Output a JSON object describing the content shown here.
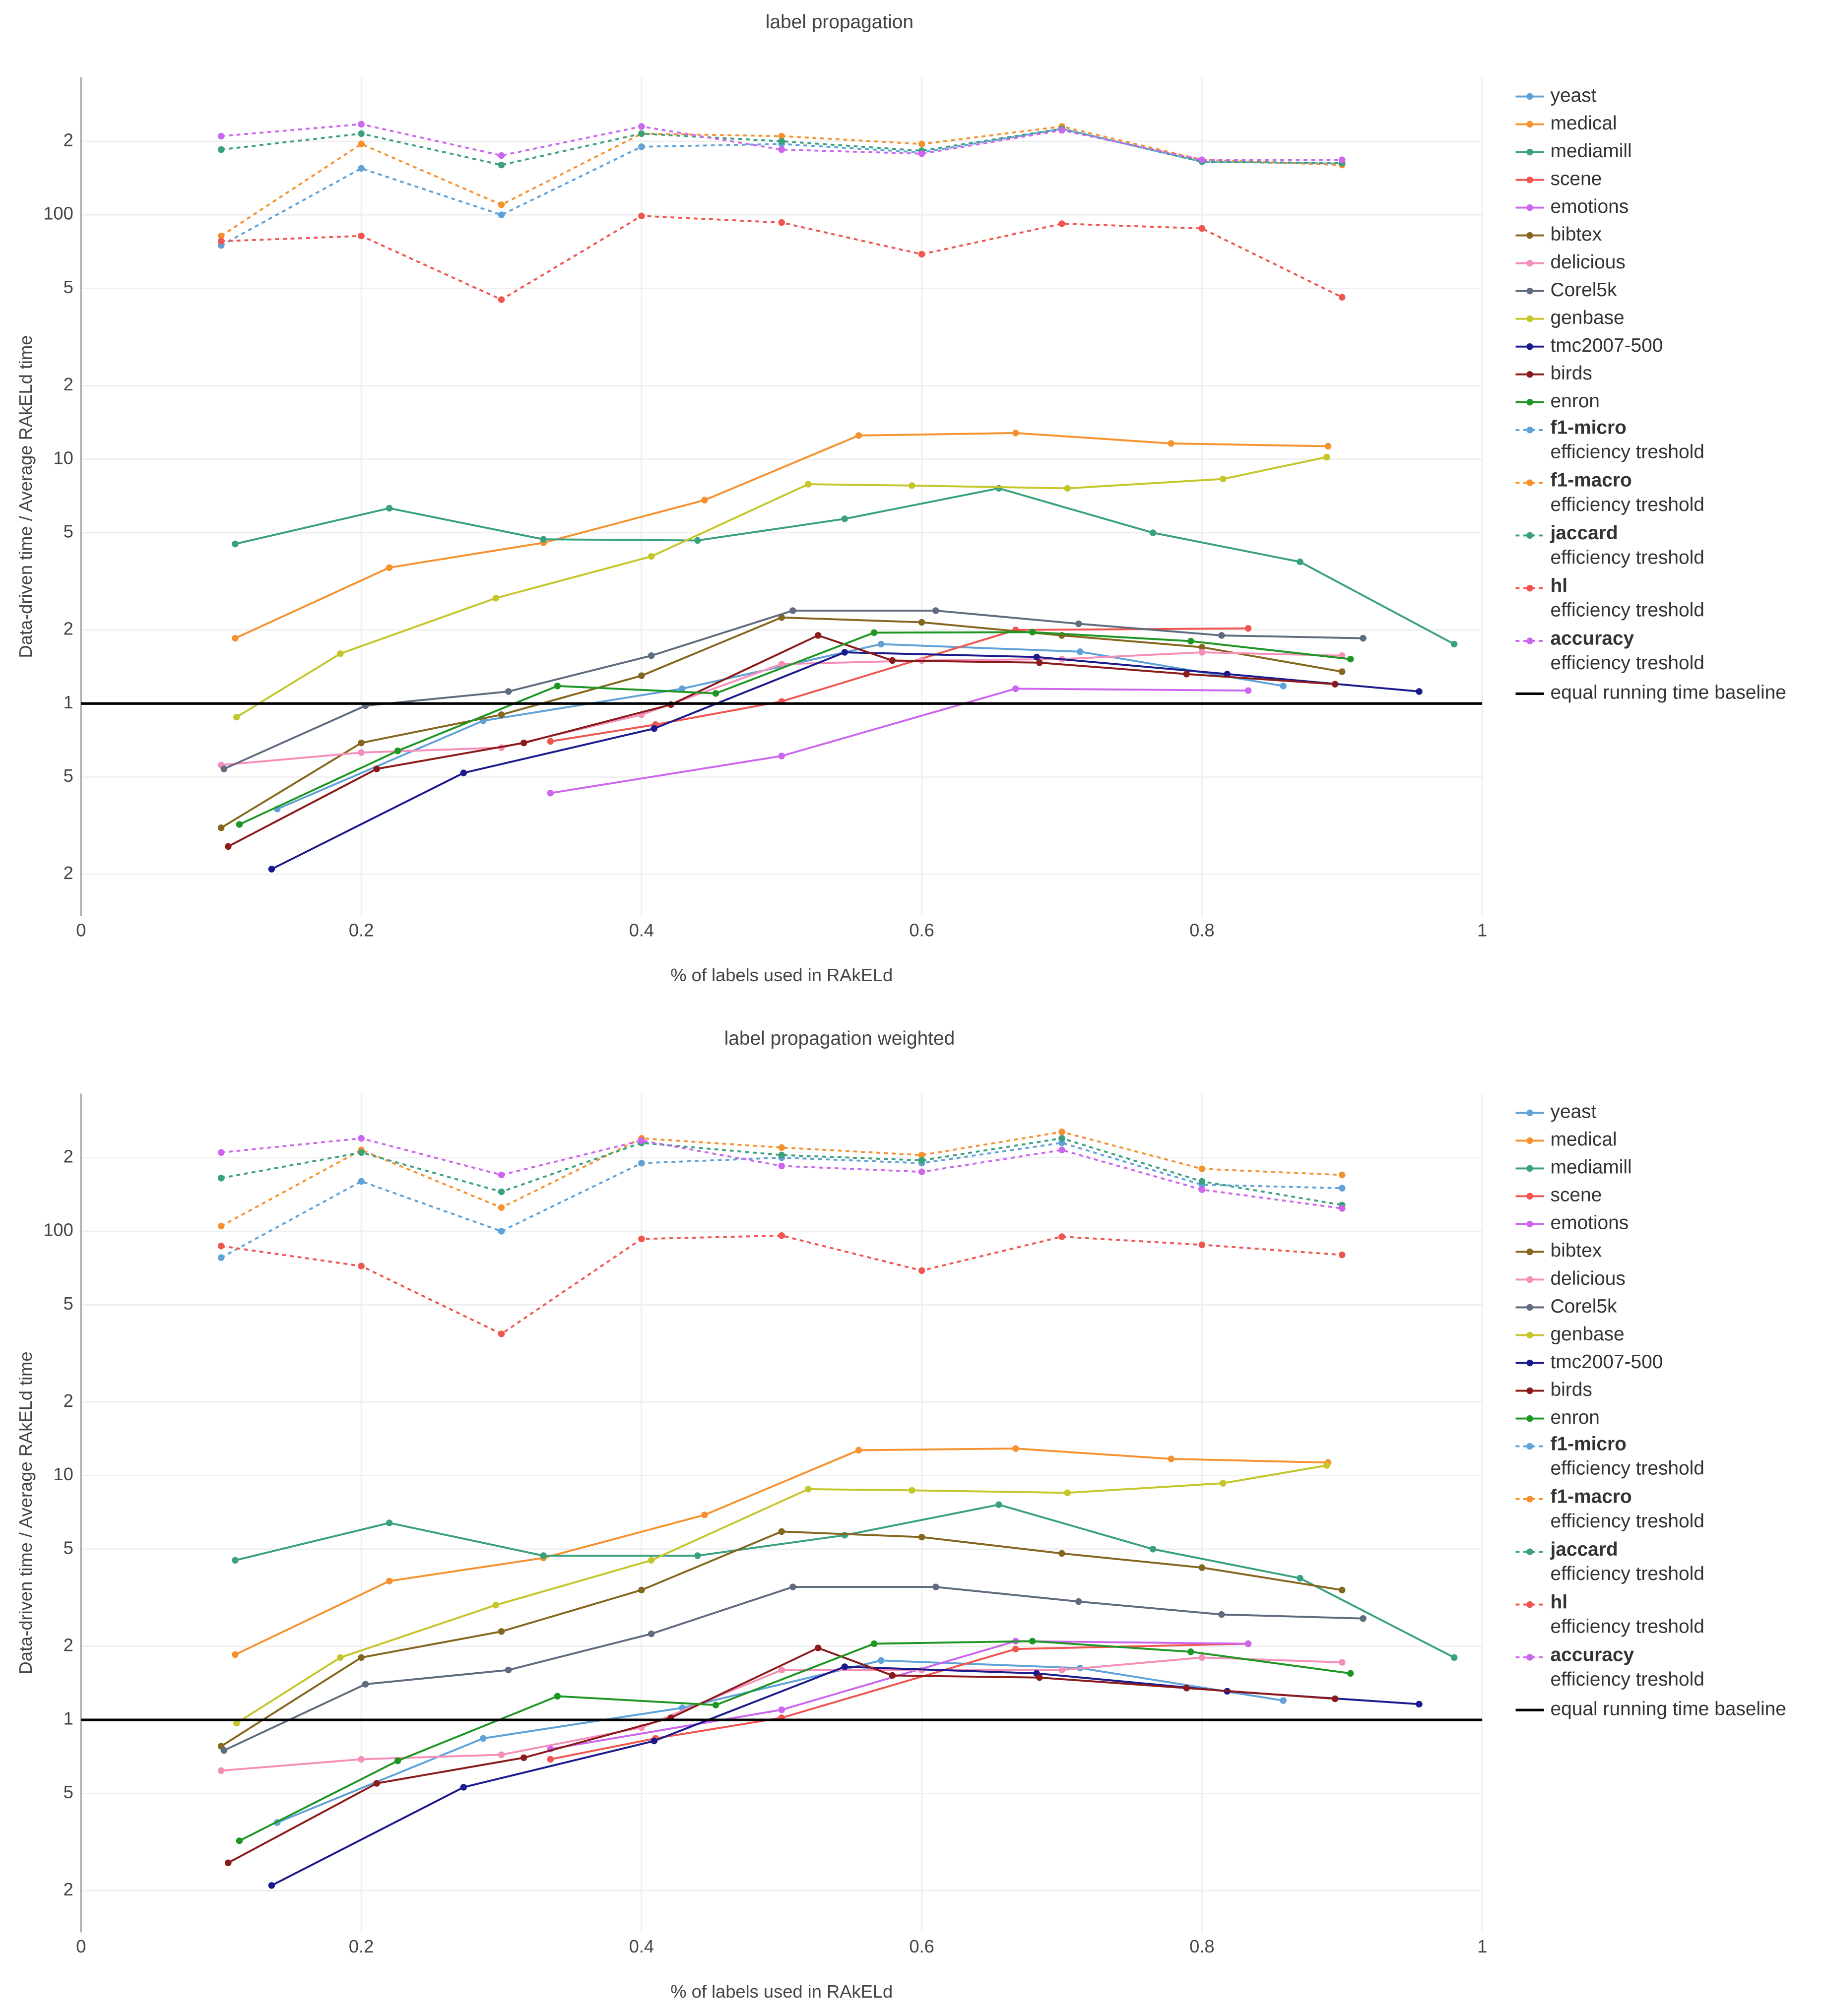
{
  "chart_data": [
    {
      "type": "line",
      "title": "label propagation",
      "xlabel": "% of labels used in RAkELd",
      "ylabel": "Data-driven time / Average RAkELd time",
      "xlim": [
        0,
        1
      ],
      "xticks": [
        0,
        0.2,
        0.4,
        0.6,
        0.8,
        1
      ],
      "ylim": [
        0.135,
        366
      ],
      "log_y": true,
      "grid": true,
      "yticks": [
        {
          "value": 0.2,
          "label": "2"
        },
        {
          "value": 0.5,
          "label": "5"
        },
        1,
        {
          "value": 2,
          "label": "2"
        },
        {
          "value": 5,
          "label": "5"
        },
        10,
        {
          "value": 20,
          "label": "2"
        },
        {
          "value": 50,
          "label": "5"
        },
        100,
        {
          "value": 200,
          "label": "2"
        }
      ],
      "series": [
        {
          "name": "yeast",
          "color": "#5fa2d8",
          "dash": false,
          "x": [
            0.14,
            0.287,
            0.429,
            0.571,
            0.713,
            0.858
          ],
          "values": [
            0.37,
            0.85,
            1.15,
            1.75,
            1.63,
            1.18
          ]
        },
        {
          "name": "medical",
          "color": "#f5922f",
          "dash": false,
          "x": [
            0.11,
            0.22,
            0.33,
            0.445,
            0.555,
            0.667,
            0.778,
            0.89
          ],
          "values": [
            1.85,
            3.6,
            4.55,
            6.8,
            12.5,
            12.8,
            11.6,
            11.3
          ]
        },
        {
          "name": "mediamill",
          "color": "#3aa17e",
          "dash": false,
          "x": [
            0.11,
            0.22,
            0.33,
            0.44,
            0.545,
            0.655,
            0.765,
            0.87,
            0.98
          ],
          "values": [
            4.5,
            6.3,
            4.7,
            4.65,
            5.7,
            7.6,
            5.0,
            3.8,
            1.75
          ]
        },
        {
          "name": "scene",
          "color": "#f0554f",
          "dash": false,
          "x": [
            0.335,
            0.41,
            0.5,
            0.667,
            0.833
          ],
          "values": [
            0.7,
            0.82,
            1.02,
            2.0,
            2.03
          ]
        },
        {
          "name": "emotions",
          "color": "#cc66ee",
          "dash": false,
          "x": [
            0.335,
            0.5,
            0.667,
            0.833
          ],
          "values": [
            0.43,
            0.61,
            1.15,
            1.13
          ]
        },
        {
          "name": "bibtex",
          "color": "#85661e",
          "dash": false,
          "x": [
            0.1,
            0.2,
            0.3,
            0.4,
            0.5,
            0.6,
            0.7,
            0.8,
            0.9
          ],
          "values": [
            0.31,
            0.69,
            0.9,
            1.3,
            2.25,
            2.15,
            1.9,
            1.7,
            1.35
          ]
        },
        {
          "name": "delicious",
          "color": "#f58fba",
          "dash": false,
          "x": [
            0.1,
            0.2,
            0.3,
            0.4,
            0.5,
            0.6,
            0.7,
            0.8,
            0.9
          ],
          "values": [
            0.56,
            0.63,
            0.66,
            0.9,
            1.45,
            1.5,
            1.52,
            1.62,
            1.57
          ]
        },
        {
          "name": "Corel5k",
          "color": "#5f6b7e",
          "dash": false,
          "x": [
            0.102,
            0.203,
            0.305,
            0.407,
            0.508,
            0.61,
            0.712,
            0.814,
            0.915
          ],
          "values": [
            0.54,
            0.98,
            1.12,
            1.57,
            2.4,
            2.4,
            2.12,
            1.9,
            1.85
          ]
        },
        {
          "name": "genbase",
          "color": "#c4c62a",
          "dash": false,
          "x": [
            0.111,
            0.185,
            0.296,
            0.407,
            0.519,
            0.593,
            0.704,
            0.815,
            0.889
          ],
          "values": [
            0.88,
            1.6,
            2.7,
            4.0,
            7.9,
            7.8,
            7.6,
            8.3,
            10.2
          ]
        },
        {
          "name": "tmc2007-500",
          "color": "#1a1a8c",
          "dash": false,
          "x": [
            0.136,
            0.273,
            0.409,
            0.545,
            0.682,
            0.818,
            0.955
          ],
          "values": [
            0.21,
            0.52,
            0.79,
            1.62,
            1.55,
            1.32,
            1.12
          ]
        },
        {
          "name": "birds",
          "color": "#8b1a1a",
          "dash": false,
          "x": [
            0.105,
            0.211,
            0.316,
            0.421,
            0.526,
            0.579,
            0.684,
            0.789,
            0.895
          ],
          "values": [
            0.26,
            0.54,
            0.69,
            0.99,
            1.9,
            1.5,
            1.47,
            1.32,
            1.2
          ]
        },
        {
          "name": "enron",
          "color": "#1e9624",
          "dash": false,
          "x": [
            0.113,
            0.226,
            0.34,
            0.453,
            0.566,
            0.679,
            0.792,
            0.906
          ],
          "values": [
            0.32,
            0.64,
            1.18,
            1.1,
            1.95,
            1.96,
            1.8,
            1.52
          ]
        },
        {
          "name": "f1-micro",
          "name_line2": "efficiency treshold",
          "color": "#5fa2d8",
          "dash": true,
          "x": [
            0.1,
            0.2,
            0.3,
            0.4,
            0.5,
            0.6,
            0.7,
            0.8,
            0.9
          ],
          "values": [
            75,
            155,
            100,
            190,
            195,
            180,
            225,
            165,
            162
          ]
        },
        {
          "name": "f1-macro",
          "name_line2": "efficiency treshold",
          "color": "#f5922f",
          "dash": true,
          "x": [
            0.1,
            0.2,
            0.3,
            0.4,
            0.5,
            0.6,
            0.7,
            0.8,
            0.9
          ],
          "values": [
            82,
            195,
            110,
            215,
            210,
            195,
            230,
            168,
            160
          ]
        },
        {
          "name": "jaccard",
          "name_line2": "efficiency treshold",
          "color": "#3aa17e",
          "dash": true,
          "x": [
            0.1,
            0.2,
            0.3,
            0.4,
            0.5,
            0.6,
            0.7,
            0.8,
            0.9
          ],
          "values": [
            185,
            215,
            160,
            215,
            200,
            183,
            225,
            165,
            163
          ]
        },
        {
          "name": "hl",
          "name_line2": "efficiency treshold",
          "color": "#f0554f",
          "dash": true,
          "x": [
            0.1,
            0.2,
            0.3,
            0.4,
            0.5,
            0.6,
            0.7,
            0.8,
            0.9
          ],
          "values": [
            78,
            82,
            45,
            99,
            93,
            69,
            92,
            88,
            46
          ]
        },
        {
          "name": "accuracy",
          "name_line2": "efficiency treshold",
          "color": "#cc66ee",
          "dash": true,
          "x": [
            0.1,
            0.2,
            0.3,
            0.4,
            0.5,
            0.6,
            0.7,
            0.8,
            0.9
          ],
          "values": [
            210,
            235,
            175,
            230,
            185,
            178,
            222,
            168,
            168
          ]
        },
        {
          "name": "equal running time baseline",
          "color": "#000000",
          "dash": false,
          "markers": false,
          "x": [
            0,
            1
          ],
          "values": [
            1,
            1
          ]
        }
      ]
    },
    {
      "type": "line",
      "title": "label propagation weighted",
      "xlabel": "% of labels used in RAkELd",
      "ylabel": "Data-driven time / Average RAkELd time",
      "xlim": [
        0,
        1
      ],
      "xticks": [
        0,
        0.2,
        0.4,
        0.6,
        0.8,
        1
      ],
      "ylim": [
        0.135,
        366
      ],
      "log_y": true,
      "grid": true,
      "yticks": [
        {
          "value": 0.2,
          "label": "2"
        },
        {
          "value": 0.5,
          "label": "5"
        },
        1,
        {
          "value": 2,
          "label": "2"
        },
        {
          "value": 5,
          "label": "5"
        },
        10,
        {
          "value": 20,
          "label": "2"
        },
        {
          "value": 50,
          "label": "5"
        },
        100,
        {
          "value": 200,
          "label": "2"
        }
      ],
      "series": [
        {
          "name": "yeast",
          "color": "#5fa2d8",
          "dash": false,
          "x": [
            0.14,
            0.287,
            0.429,
            0.571,
            0.713,
            0.858
          ],
          "values": [
            0.38,
            0.84,
            1.12,
            1.75,
            1.63,
            1.2
          ]
        },
        {
          "name": "medical",
          "color": "#f5922f",
          "dash": false,
          "x": [
            0.11,
            0.22,
            0.33,
            0.445,
            0.555,
            0.667,
            0.778,
            0.89
          ],
          "values": [
            1.85,
            3.7,
            4.6,
            6.9,
            12.7,
            12.9,
            11.7,
            11.3
          ]
        },
        {
          "name": "mediamill",
          "color": "#3aa17e",
          "dash": false,
          "x": [
            0.11,
            0.22,
            0.33,
            0.44,
            0.545,
            0.655,
            0.765,
            0.87,
            0.98
          ],
          "values": [
            4.5,
            6.4,
            4.7,
            4.7,
            5.7,
            7.6,
            5.0,
            3.8,
            1.8
          ]
        },
        {
          "name": "scene",
          "color": "#f0554f",
          "dash": false,
          "x": [
            0.335,
            0.41,
            0.5,
            0.667,
            0.833
          ],
          "values": [
            0.69,
            0.84,
            1.02,
            1.95,
            2.05
          ]
        },
        {
          "name": "emotions",
          "color": "#cc66ee",
          "dash": false,
          "x": [
            0.335,
            0.5,
            0.667,
            0.833
          ],
          "values": [
            0.76,
            1.1,
            2.1,
            2.05
          ]
        },
        {
          "name": "bibtex",
          "color": "#85661e",
          "dash": false,
          "x": [
            0.1,
            0.2,
            0.3,
            0.4,
            0.5,
            0.6,
            0.7,
            0.8,
            0.9
          ],
          "values": [
            0.78,
            1.8,
            2.3,
            3.4,
            5.9,
            5.6,
            4.8,
            4.2,
            3.4
          ]
        },
        {
          "name": "delicious",
          "color": "#f58fba",
          "dash": false,
          "x": [
            0.1,
            0.2,
            0.3,
            0.4,
            0.5,
            0.6,
            0.7,
            0.8,
            0.9
          ],
          "values": [
            0.62,
            0.69,
            0.72,
            0.93,
            1.6,
            1.6,
            1.6,
            1.8,
            1.72
          ]
        },
        {
          "name": "Corel5k",
          "color": "#5f6b7e",
          "dash": false,
          "x": [
            0.102,
            0.203,
            0.305,
            0.407,
            0.508,
            0.61,
            0.712,
            0.814,
            0.915
          ],
          "values": [
            0.75,
            1.4,
            1.6,
            2.25,
            3.5,
            3.5,
            3.05,
            2.7,
            2.6
          ]
        },
        {
          "name": "genbase",
          "color": "#c4c62a",
          "dash": false,
          "x": [
            0.111,
            0.185,
            0.296,
            0.407,
            0.519,
            0.593,
            0.704,
            0.815,
            0.889
          ],
          "values": [
            0.97,
            1.8,
            2.95,
            4.5,
            8.8,
            8.7,
            8.5,
            9.3,
            11.0
          ]
        },
        {
          "name": "tmc2007-500",
          "color": "#1a1a8c",
          "dash": false,
          "x": [
            0.136,
            0.273,
            0.409,
            0.545,
            0.682,
            0.818,
            0.955
          ],
          "values": [
            0.21,
            0.53,
            0.82,
            1.65,
            1.55,
            1.31,
            1.16
          ]
        },
        {
          "name": "birds",
          "color": "#8b1a1a",
          "dash": false,
          "x": [
            0.105,
            0.211,
            0.316,
            0.421,
            0.526,
            0.579,
            0.684,
            0.789,
            0.895
          ],
          "values": [
            0.26,
            0.55,
            0.7,
            1.02,
            1.97,
            1.52,
            1.49,
            1.35,
            1.22
          ]
        },
        {
          "name": "enron",
          "color": "#1e9624",
          "dash": false,
          "x": [
            0.113,
            0.226,
            0.34,
            0.453,
            0.566,
            0.679,
            0.792,
            0.906
          ],
          "values": [
            0.32,
            0.68,
            1.25,
            1.15,
            2.05,
            2.1,
            1.9,
            1.55
          ]
        },
        {
          "name": "f1-micro",
          "name_line2": "efficiency treshold",
          "color": "#5fa2d8",
          "dash": true,
          "x": [
            0.1,
            0.2,
            0.3,
            0.4,
            0.5,
            0.6,
            0.7,
            0.8,
            0.9
          ],
          "values": [
            78,
            160,
            100,
            190,
            200,
            190,
            230,
            155,
            150
          ]
        },
        {
          "name": "f1-macro",
          "name_line2": "efficiency treshold",
          "color": "#f5922f",
          "dash": true,
          "x": [
            0.1,
            0.2,
            0.3,
            0.4,
            0.5,
            0.6,
            0.7,
            0.8,
            0.9
          ],
          "values": [
            105,
            215,
            125,
            240,
            220,
            205,
            255,
            180,
            170
          ]
        },
        {
          "name": "jaccard",
          "name_line2": "efficiency treshold",
          "color": "#3aa17e",
          "dash": true,
          "x": [
            0.1,
            0.2,
            0.3,
            0.4,
            0.5,
            0.6,
            0.7,
            0.8,
            0.9
          ],
          "values": [
            165,
            210,
            145,
            230,
            205,
            195,
            240,
            160,
            128
          ]
        },
        {
          "name": "hl",
          "name_line2": "efficiency treshold",
          "color": "#f0554f",
          "dash": true,
          "x": [
            0.1,
            0.2,
            0.3,
            0.4,
            0.5,
            0.6,
            0.7,
            0.8,
            0.9
          ],
          "values": [
            87,
            72,
            38,
            93,
            96,
            69,
            95,
            88,
            80
          ]
        },
        {
          "name": "accuracy",
          "name_line2": "efficiency treshold",
          "color": "#cc66ee",
          "dash": true,
          "x": [
            0.1,
            0.2,
            0.3,
            0.4,
            0.5,
            0.6,
            0.7,
            0.8,
            0.9
          ],
          "values": [
            210,
            240,
            170,
            235,
            185,
            175,
            215,
            148,
            124
          ]
        },
        {
          "name": "equal running time baseline",
          "color": "#000000",
          "dash": false,
          "markers": false,
          "x": [
            0,
            1
          ],
          "values": [
            1,
            1
          ]
        }
      ]
    }
  ]
}
